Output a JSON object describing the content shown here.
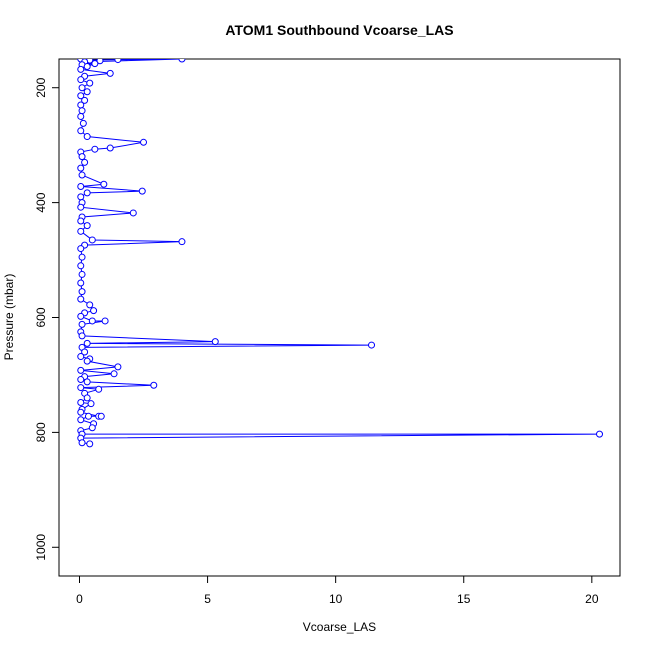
{
  "chart_data": {
    "type": "scatter",
    "title": "ATOM1 Southbound Vcoarse_LAS",
    "xlabel": "Vcoarse_LAS",
    "ylabel": "Pressure (mbar)",
    "xlim": [
      -0.8,
      21.1
    ],
    "ylim": [
      1050,
      150
    ],
    "y_reversed": true,
    "x_ticks": [
      0,
      5,
      10,
      15,
      20
    ],
    "y_ticks": [
      200,
      400,
      600,
      800,
      1000
    ],
    "grid": false,
    "legend": "none",
    "series_color": "#0000ff",
    "series": [
      {
        "values_note_free": true,
        "points": [
          [
            0.05,
            150
          ],
          [
            0.4,
            152
          ],
          [
            1.5,
            151
          ],
          [
            4.0,
            150
          ],
          [
            0.2,
            155
          ],
          [
            0.8,
            153
          ],
          [
            0.1,
            160
          ],
          [
            0.6,
            158
          ],
          [
            0.3,
            163
          ],
          [
            0.05,
            168
          ],
          [
            1.2,
            175
          ],
          [
            0.2,
            180
          ],
          [
            0.05,
            186
          ],
          [
            0.4,
            192
          ],
          [
            0.1,
            200
          ],
          [
            0.3,
            207
          ],
          [
            0.05,
            214
          ],
          [
            0.2,
            222
          ],
          [
            0.05,
            230
          ],
          [
            0.1,
            240
          ],
          [
            0.05,
            250
          ],
          [
            0.15,
            262
          ],
          [
            0.05,
            275
          ],
          [
            0.3,
            285
          ],
          [
            2.5,
            295
          ],
          [
            1.2,
            305
          ],
          [
            0.6,
            307
          ],
          [
            0.05,
            312
          ],
          [
            0.1,
            320
          ],
          [
            0.2,
            330
          ],
          [
            0.05,
            340
          ],
          [
            0.1,
            352
          ],
          [
            0.95,
            368
          ],
          [
            0.05,
            372
          ],
          [
            2.45,
            380
          ],
          [
            0.3,
            383
          ],
          [
            0.05,
            390
          ],
          [
            0.1,
            400
          ],
          [
            0.05,
            408
          ],
          [
            2.1,
            418
          ],
          [
            0.1,
            425
          ],
          [
            0.05,
            432
          ],
          [
            0.3,
            440
          ],
          [
            0.05,
            450
          ],
          [
            0.5,
            465
          ],
          [
            4.0,
            468
          ],
          [
            0.2,
            474
          ],
          [
            0.05,
            480
          ],
          [
            0.1,
            495
          ],
          [
            0.05,
            510
          ],
          [
            0.1,
            525
          ],
          [
            0.05,
            540
          ],
          [
            0.1,
            555
          ],
          [
            0.05,
            568
          ],
          [
            0.4,
            578
          ],
          [
            0.55,
            588
          ],
          [
            0.2,
            592
          ],
          [
            0.05,
            598
          ],
          [
            0.5,
            606
          ],
          [
            1.0,
            606
          ],
          [
            0.1,
            612
          ],
          [
            0.05,
            625
          ],
          [
            0.1,
            632
          ],
          [
            5.3,
            642
          ],
          [
            0.3,
            645
          ],
          [
            11.4,
            648
          ],
          [
            0.1,
            652
          ],
          [
            0.2,
            660
          ],
          [
            0.05,
            668
          ],
          [
            0.4,
            672
          ],
          [
            0.3,
            676
          ],
          [
            1.5,
            686
          ],
          [
            0.05,
            692
          ],
          [
            1.35,
            698
          ],
          [
            0.2,
            703
          ],
          [
            0.05,
            708
          ],
          [
            0.3,
            712
          ],
          [
            2.9,
            718
          ],
          [
            0.05,
            722
          ],
          [
            0.75,
            725
          ],
          [
            0.2,
            732
          ],
          [
            0.3,
            740
          ],
          [
            0.05,
            748
          ],
          [
            0.45,
            750
          ],
          [
            0.1,
            760
          ],
          [
            0.05,
            765
          ],
          [
            0.75,
            772
          ],
          [
            0.85,
            772
          ],
          [
            0.35,
            772
          ],
          [
            0.05,
            778
          ],
          [
            0.55,
            785
          ],
          [
            0.5,
            792
          ],
          [
            0.05,
            797
          ],
          [
            0.1,
            803
          ],
          [
            20.3,
            803
          ],
          [
            0.05,
            810
          ],
          [
            0.1,
            818
          ],
          [
            0.4,
            820
          ]
        ]
      }
    ]
  }
}
